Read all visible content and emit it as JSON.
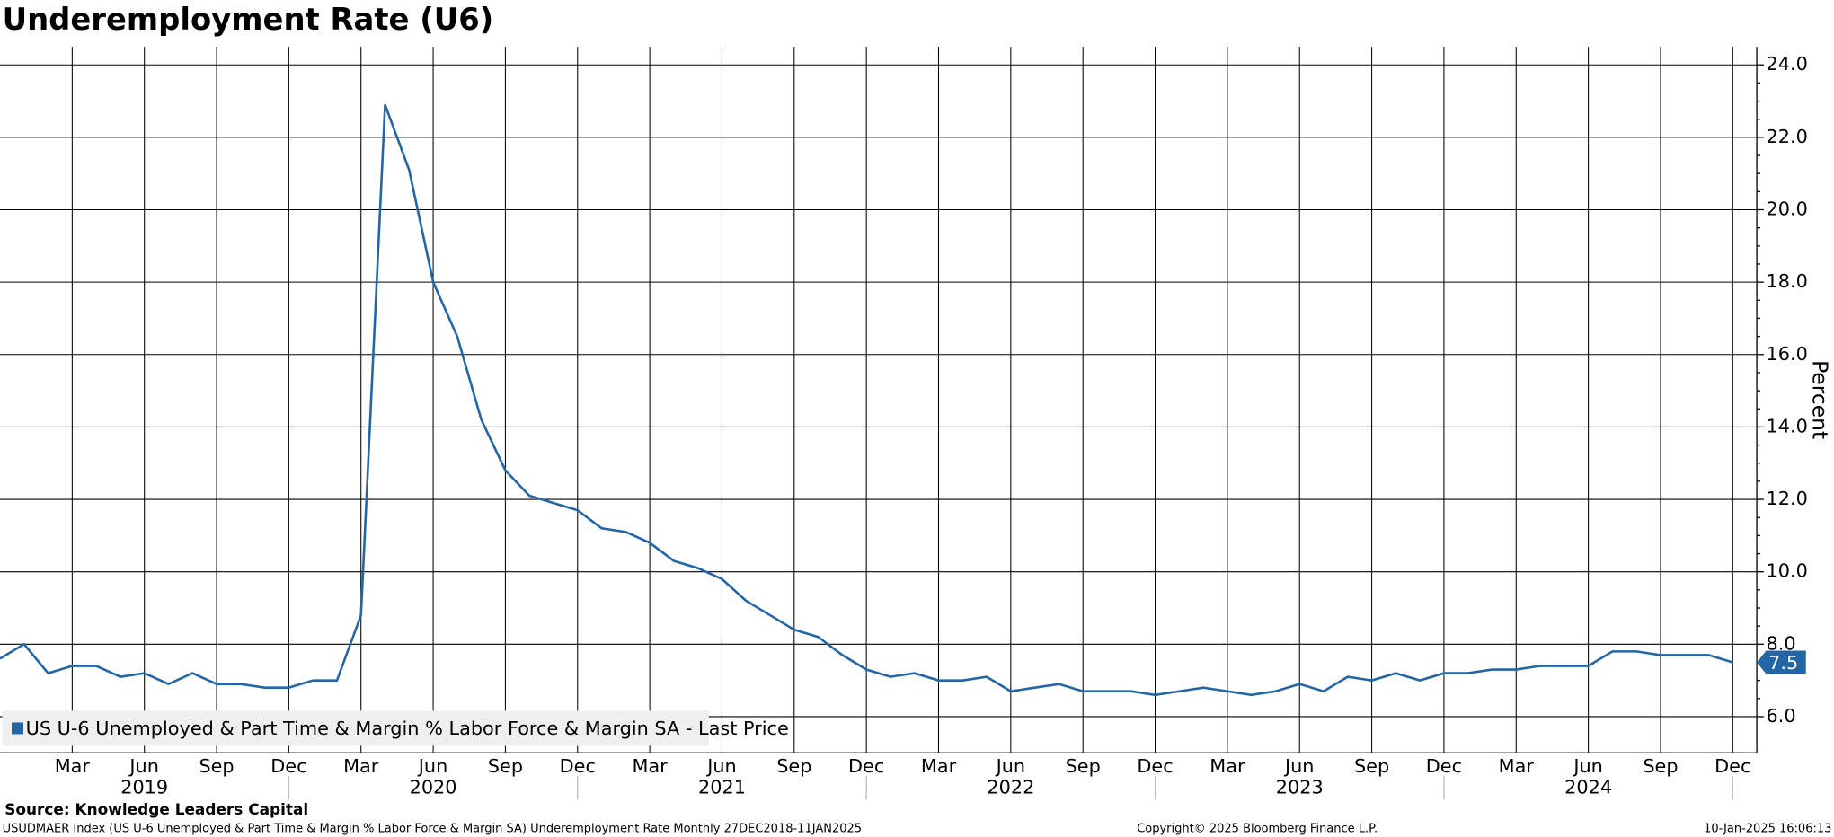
{
  "chart_data": {
    "type": "line",
    "title": "Underemployment Rate (U6)",
    "y_label": "Percent",
    "source": "Source: Knowledge Leaders Capital",
    "description": "USUDMAER Index (US U-6 Unemployed & Part Time & Margin % Labor Force & Margin SA) Underemployment Rate  Monthly 27DEC2018-11JAN2025",
    "copyright": "Copyright© 2025 Bloomberg Finance L.P.",
    "timestamp": "10-Jan-2025 16:06:13",
    "x": [
      "2018-12",
      "2019-01",
      "2019-02",
      "2019-03",
      "2019-04",
      "2019-05",
      "2019-06",
      "2019-07",
      "2019-08",
      "2019-09",
      "2019-10",
      "2019-11",
      "2019-12",
      "2020-01",
      "2020-02",
      "2020-03",
      "2020-04",
      "2020-05",
      "2020-06",
      "2020-07",
      "2020-08",
      "2020-09",
      "2020-10",
      "2020-11",
      "2020-12",
      "2021-01",
      "2021-02",
      "2021-03",
      "2021-04",
      "2021-05",
      "2021-06",
      "2021-07",
      "2021-08",
      "2021-09",
      "2021-10",
      "2021-11",
      "2021-12",
      "2022-01",
      "2022-02",
      "2022-03",
      "2022-04",
      "2022-05",
      "2022-06",
      "2022-07",
      "2022-08",
      "2022-09",
      "2022-10",
      "2022-11",
      "2022-12",
      "2023-01",
      "2023-02",
      "2023-03",
      "2023-04",
      "2023-05",
      "2023-06",
      "2023-07",
      "2023-08",
      "2023-09",
      "2023-10",
      "2023-11",
      "2023-12",
      "2024-01",
      "2024-02",
      "2024-03",
      "2024-04",
      "2024-05",
      "2024-06",
      "2024-07",
      "2024-08",
      "2024-09",
      "2024-10",
      "2024-11",
      "2024-12"
    ],
    "series": [
      {
        "name": "US U-6 Unemployed & Part Time & Margin % Labor Force & Margin SA - Last Price",
        "color": "#2266a8",
        "values": [
          7.6,
          8.0,
          7.2,
          7.4,
          7.4,
          7.1,
          7.2,
          6.9,
          7.2,
          6.9,
          6.9,
          6.8,
          6.8,
          7.0,
          7.0,
          8.8,
          22.9,
          21.1,
          18.0,
          16.5,
          14.2,
          12.8,
          12.1,
          11.9,
          11.7,
          11.2,
          11.1,
          10.8,
          10.3,
          10.1,
          9.8,
          9.2,
          8.8,
          8.4,
          8.2,
          7.7,
          7.3,
          7.1,
          7.2,
          7.0,
          7.0,
          7.1,
          6.7,
          6.8,
          6.9,
          6.7,
          6.7,
          6.7,
          6.6,
          6.7,
          6.8,
          6.7,
          6.6,
          6.7,
          6.9,
          6.7,
          7.1,
          7.0,
          7.2,
          7.0,
          7.2,
          7.2,
          7.3,
          7.3,
          7.4,
          7.4,
          7.4,
          7.8,
          7.8,
          7.7,
          7.7,
          7.7,
          7.5
        ]
      }
    ],
    "xlim": [
      "2018-12",
      "2025-01"
    ],
    "xticks": [
      {
        "value": "2019-03",
        "label": "Mar"
      },
      {
        "value": "2019-06",
        "label": "Jun"
      },
      {
        "value": "2019-09",
        "label": "Sep"
      },
      {
        "value": "2019-12",
        "label": "Dec"
      },
      {
        "value": "2020-03",
        "label": "Mar"
      },
      {
        "value": "2020-06",
        "label": "Jun"
      },
      {
        "value": "2020-09",
        "label": "Sep"
      },
      {
        "value": "2020-12",
        "label": "Dec"
      },
      {
        "value": "2021-03",
        "label": "Mar"
      },
      {
        "value": "2021-06",
        "label": "Jun"
      },
      {
        "value": "2021-09",
        "label": "Sep"
      },
      {
        "value": "2021-12",
        "label": "Dec"
      },
      {
        "value": "2022-03",
        "label": "Mar"
      },
      {
        "value": "2022-06",
        "label": "Jun"
      },
      {
        "value": "2022-09",
        "label": "Sep"
      },
      {
        "value": "2022-12",
        "label": "Dec"
      },
      {
        "value": "2023-03",
        "label": "Mar"
      },
      {
        "value": "2023-06",
        "label": "Jun"
      },
      {
        "value": "2023-09",
        "label": "Sep"
      },
      {
        "value": "2023-12",
        "label": "Dec"
      },
      {
        "value": "2024-03",
        "label": "Mar"
      },
      {
        "value": "2024-06",
        "label": "Jun"
      },
      {
        "value": "2024-09",
        "label": "Sep"
      },
      {
        "value": "2024-12",
        "label": "Dec"
      }
    ],
    "xticks_year": [
      "2019",
      "2020",
      "2021",
      "2022",
      "2023",
      "2024"
    ],
    "ylim": [
      5,
      24.5
    ],
    "yticks": [
      {
        "value": 6,
        "label": "6.0"
      },
      {
        "value": 8,
        "label": "8.0"
      },
      {
        "value": 10,
        "label": "10.0"
      },
      {
        "value": 12,
        "label": "12.0"
      },
      {
        "value": 14,
        "label": "14.0"
      },
      {
        "value": 16,
        "label": "16.0"
      },
      {
        "value": 18,
        "label": "18.0"
      },
      {
        "value": 20,
        "label": "20.0"
      },
      {
        "value": 22,
        "label": "22.0"
      },
      {
        "value": 24,
        "label": "24.0"
      }
    ],
    "grid": true,
    "legend": "lower left"
  }
}
